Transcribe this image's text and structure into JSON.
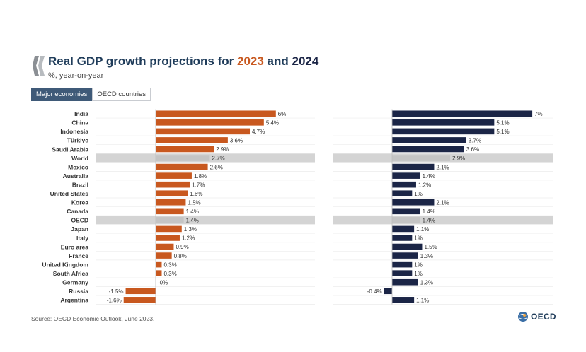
{
  "header": {
    "title_pre": "Real GDP growth projections for ",
    "year1": "2023",
    "title_mid": " and ",
    "year2": "2024",
    "subtitle": "%, year-on-year"
  },
  "tabs": [
    {
      "label": "Major economies",
      "active": true
    },
    {
      "label": "OECD countries",
      "active": false
    }
  ],
  "colors": {
    "y2023": "#c8581f",
    "y2024": "#1b2546",
    "highlight": "#d4d4d4"
  },
  "chart_data": {
    "type": "bar",
    "orientation": "horizontal",
    "categories": [
      "India",
      "China",
      "Indonesia",
      "Türkiye",
      "Saudi Arabia",
      "World",
      "Mexico",
      "Australia",
      "Brazil",
      "United States",
      "Korea",
      "Canada",
      "OECD",
      "Japan",
      "Italy",
      "Euro area",
      "France",
      "United Kingdom",
      "South Africa",
      "Germany",
      "Russia",
      "Argentina"
    ],
    "highlighted": [
      "World",
      "OECD"
    ],
    "series": [
      {
        "name": "2023",
        "values": [
          6,
          5.4,
          4.7,
          3.6,
          2.9,
          2.7,
          2.6,
          1.8,
          1.7,
          1.6,
          1.5,
          1.4,
          1.4,
          1.3,
          1.2,
          0.9,
          0.8,
          0.3,
          0.3,
          0,
          -1.5,
          -1.6
        ],
        "labels": [
          "6%",
          "5.4%",
          "4.7%",
          "3.6%",
          "2.9%",
          "2.7%",
          "2.6%",
          "1.8%",
          "1.7%",
          "1.6%",
          "1.5%",
          "1.4%",
          "1.4%",
          "1.3%",
          "1.2%",
          "0.9%",
          "0.8%",
          "0.3%",
          "0.3%",
          "-0%",
          "-1.5%",
          "-1.6%"
        ]
      },
      {
        "name": "2024",
        "values": [
          7,
          5.1,
          5.1,
          3.7,
          3.6,
          2.9,
          2.1,
          1.4,
          1.2,
          1,
          2.1,
          1.4,
          1.4,
          1.1,
          1,
          1.5,
          1.3,
          1,
          1,
          1.3,
          -0.4,
          1.1
        ],
        "labels": [
          "7%",
          "5.1%",
          "5.1%",
          "3.7%",
          "3.6%",
          "2.9%",
          "2.1%",
          "1.4%",
          "1.2%",
          "1%",
          "2.1%",
          "1.4%",
          "1.4%",
          "1.1%",
          "1%",
          "1.5%",
          "1.3%",
          "1%",
          "1%",
          "1.3%",
          "-0.4%",
          "1.1%"
        ]
      }
    ]
  },
  "footer": {
    "source_prefix": "Source: ",
    "source_link": "OECD Economic Outlook, June 2023.",
    "logo_text": "OECD"
  }
}
